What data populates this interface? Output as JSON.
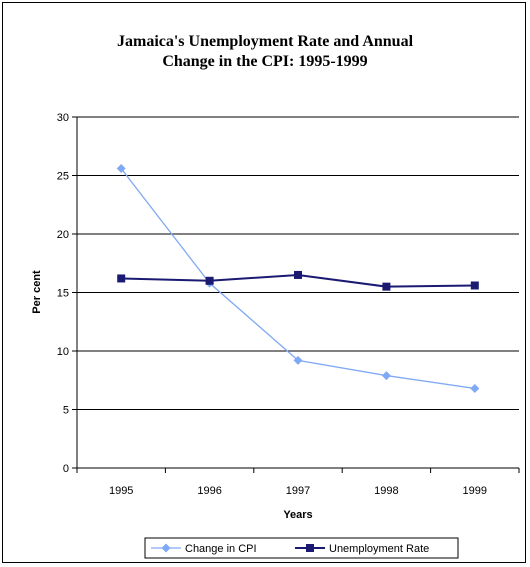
{
  "chart_data": {
    "type": "line",
    "title_line1": "Jamaica's Unemployment Rate and Annual",
    "title_line2": "Change in the CPI: 1995-1999",
    "xlabel": "Years",
    "ylabel": "Per cent",
    "categories": [
      "1995",
      "1996",
      "1997",
      "1998",
      "1999"
    ],
    "ylim": [
      0,
      30
    ],
    "yticks": [
      "0",
      "5",
      "10",
      "15",
      "20",
      "25",
      "30"
    ],
    "grid": true,
    "legend_position": "bottom",
    "series": [
      {
        "name": "Change in CPI",
        "values": [
          25.6,
          15.8,
          9.2,
          7.9,
          6.8
        ],
        "color": "#7fa9f4",
        "marker": "diamond"
      },
      {
        "name": "Unemployment Rate",
        "values": [
          16.2,
          16.0,
          16.5,
          15.5,
          15.6
        ],
        "color": "#1a1a72",
        "marker": "square"
      }
    ]
  }
}
